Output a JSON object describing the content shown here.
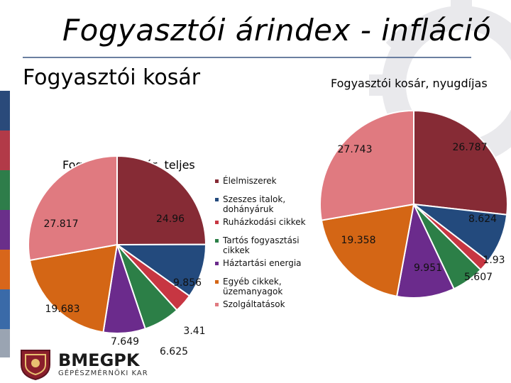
{
  "title": "Fogyasztói árindex - infláció",
  "subtitle": "Fogyasztói kosár",
  "logo": {
    "name": "BMEGPK",
    "sub": "GÉPÉSZMÉRNÖKI KAR"
  },
  "colors": {
    "accent_rule": "#6b7fa0",
    "side_stripes": [
      "#2a4a7a",
      "#b23a48",
      "#2e7d4a",
      "#6a2f8a",
      "#d8661b",
      "#3a6aa8",
      "#9aa4b2"
    ]
  },
  "chart_data": [
    {
      "type": "pie",
      "title": "Fogyasztói kosár, teljes",
      "start_angle": 0,
      "series": [
        {
          "name": "Élelmiszerek",
          "value": 24.96,
          "label": "24.96",
          "color": "#862b35"
        },
        {
          "name": "Szeszes italok, dohányáruk",
          "value": 9.856,
          "label": "9.856",
          "color": "#234a7d"
        },
        {
          "name": "Ruházkodási cikkek",
          "value": 3.41,
          "label": "3.41",
          "color": "#c73642"
        },
        {
          "name": "Tartós fogyasztási cikkek",
          "value": 6.625,
          "label": "6.625",
          "color": "#2c7f47"
        },
        {
          "name": "Háztartási energia",
          "value": 7.649,
          "label": "7.649",
          "color": "#6b2b8c"
        },
        {
          "name": "Egyéb cikkek, üzemanyagok",
          "value": 19.683,
          "label": "19.683",
          "color": "#d46615"
        },
        {
          "name": "Szolgáltatások",
          "value": 27.817,
          "label": "27.817",
          "color": "#e07a80"
        }
      ],
      "legend_position": "right"
    },
    {
      "type": "pie",
      "title": "Fogyasztói kosár, nyugdíjas",
      "start_angle": 0,
      "series": [
        {
          "name": "Élelmiszerek",
          "value": 26.787,
          "label": "26.787",
          "color": "#862b35"
        },
        {
          "name": "Szeszes italok, dohányáruk",
          "value": 8.624,
          "label": "8.624",
          "color": "#234a7d"
        },
        {
          "name": "Ruházkodási cikkek",
          "value": 1.93,
          "label": "1.93",
          "color": "#c73642"
        },
        {
          "name": "Tartós fogyasztási cikkek",
          "value": 5.607,
          "label": "5.607",
          "color": "#2c7f47"
        },
        {
          "name": "Háztartási energia",
          "value": 9.951,
          "label": "9.951",
          "color": "#6b2b8c"
        },
        {
          "name": "Egyéb cikkek, üzemanyagok",
          "value": 19.358,
          "label": "19.358",
          "color": "#d46615"
        },
        {
          "name": "Szolgáltatások",
          "value": 27.743,
          "label": "27.743",
          "color": "#e07a80"
        }
      ]
    }
  ],
  "legend": {
    "items": [
      {
        "label": "Élelmiszerek",
        "color": "#862b35"
      },
      {
        "label": "Szeszes italok, dohányáruk",
        "color": "#234a7d"
      },
      {
        "label": "Ruházkodási cikkek",
        "color": "#c73642"
      },
      {
        "label": "Tartós fogyasztási cikkek",
        "color": "#2c7f47"
      },
      {
        "label": "Háztartási energia",
        "color": "#6b2b8c"
      },
      {
        "label": "Egyéb cikkek, üzemanyagok",
        "color": "#d46615"
      },
      {
        "label": "Szolgáltatások",
        "color": "#e07a80"
      }
    ]
  }
}
